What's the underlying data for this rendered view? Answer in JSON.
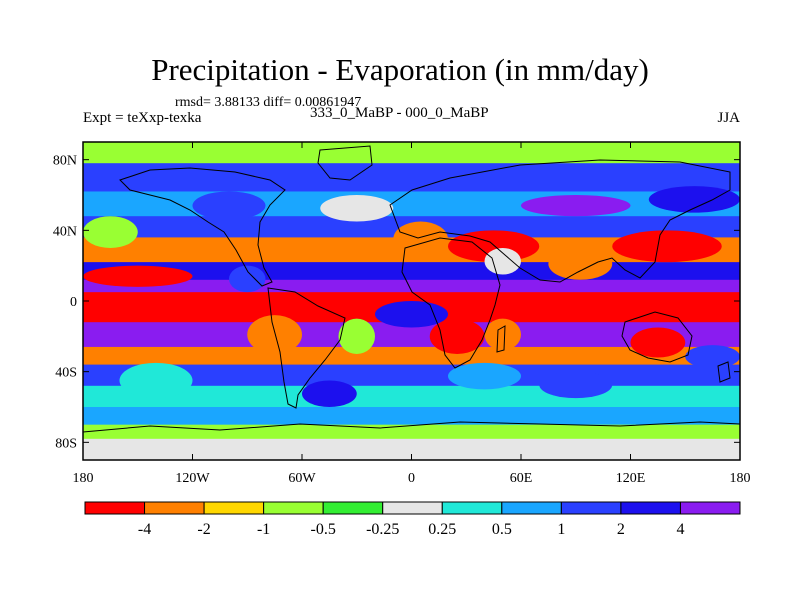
{
  "chart_data": {
    "type": "heatmap",
    "title": "Precipitation - Evaporation (in mm/day)",
    "stats_line": "rmsd= 3.88133 diff= 0.00861947",
    "left_string": "Expt = teXxp-texka",
    "center_string": "333_0_MaBP - 000_0_MaBP",
    "right_string": "JJA",
    "xlim": [
      -180,
      180
    ],
    "ylim": [
      -90,
      90
    ],
    "x_ticks": [
      -180,
      -120,
      -60,
      0,
      60,
      120,
      180
    ],
    "x_tick_labels": [
      "180",
      "120W",
      "60W",
      "0",
      "60E",
      "120E",
      "180"
    ],
    "y_ticks": [
      80,
      40,
      0,
      -40,
      -80
    ],
    "y_tick_labels": [
      "80N",
      "40N",
      "0",
      "40S",
      "80S"
    ],
    "colorbar_labels": [
      "-4",
      "-2",
      "-1",
      "-0.5",
      "-0.25",
      "0.25",
      "0.5",
      "1",
      "2",
      "4"
    ],
    "colorbar_colors": [
      "#ff0000",
      "#ff8000",
      "#ffd700",
      "#99ff33",
      "#33ee33",
      "#e6e6e6",
      "#20e8d8",
      "#1aa6ff",
      "#2a40ff",
      "#1c10ee",
      "#8a1cf0"
    ]
  }
}
